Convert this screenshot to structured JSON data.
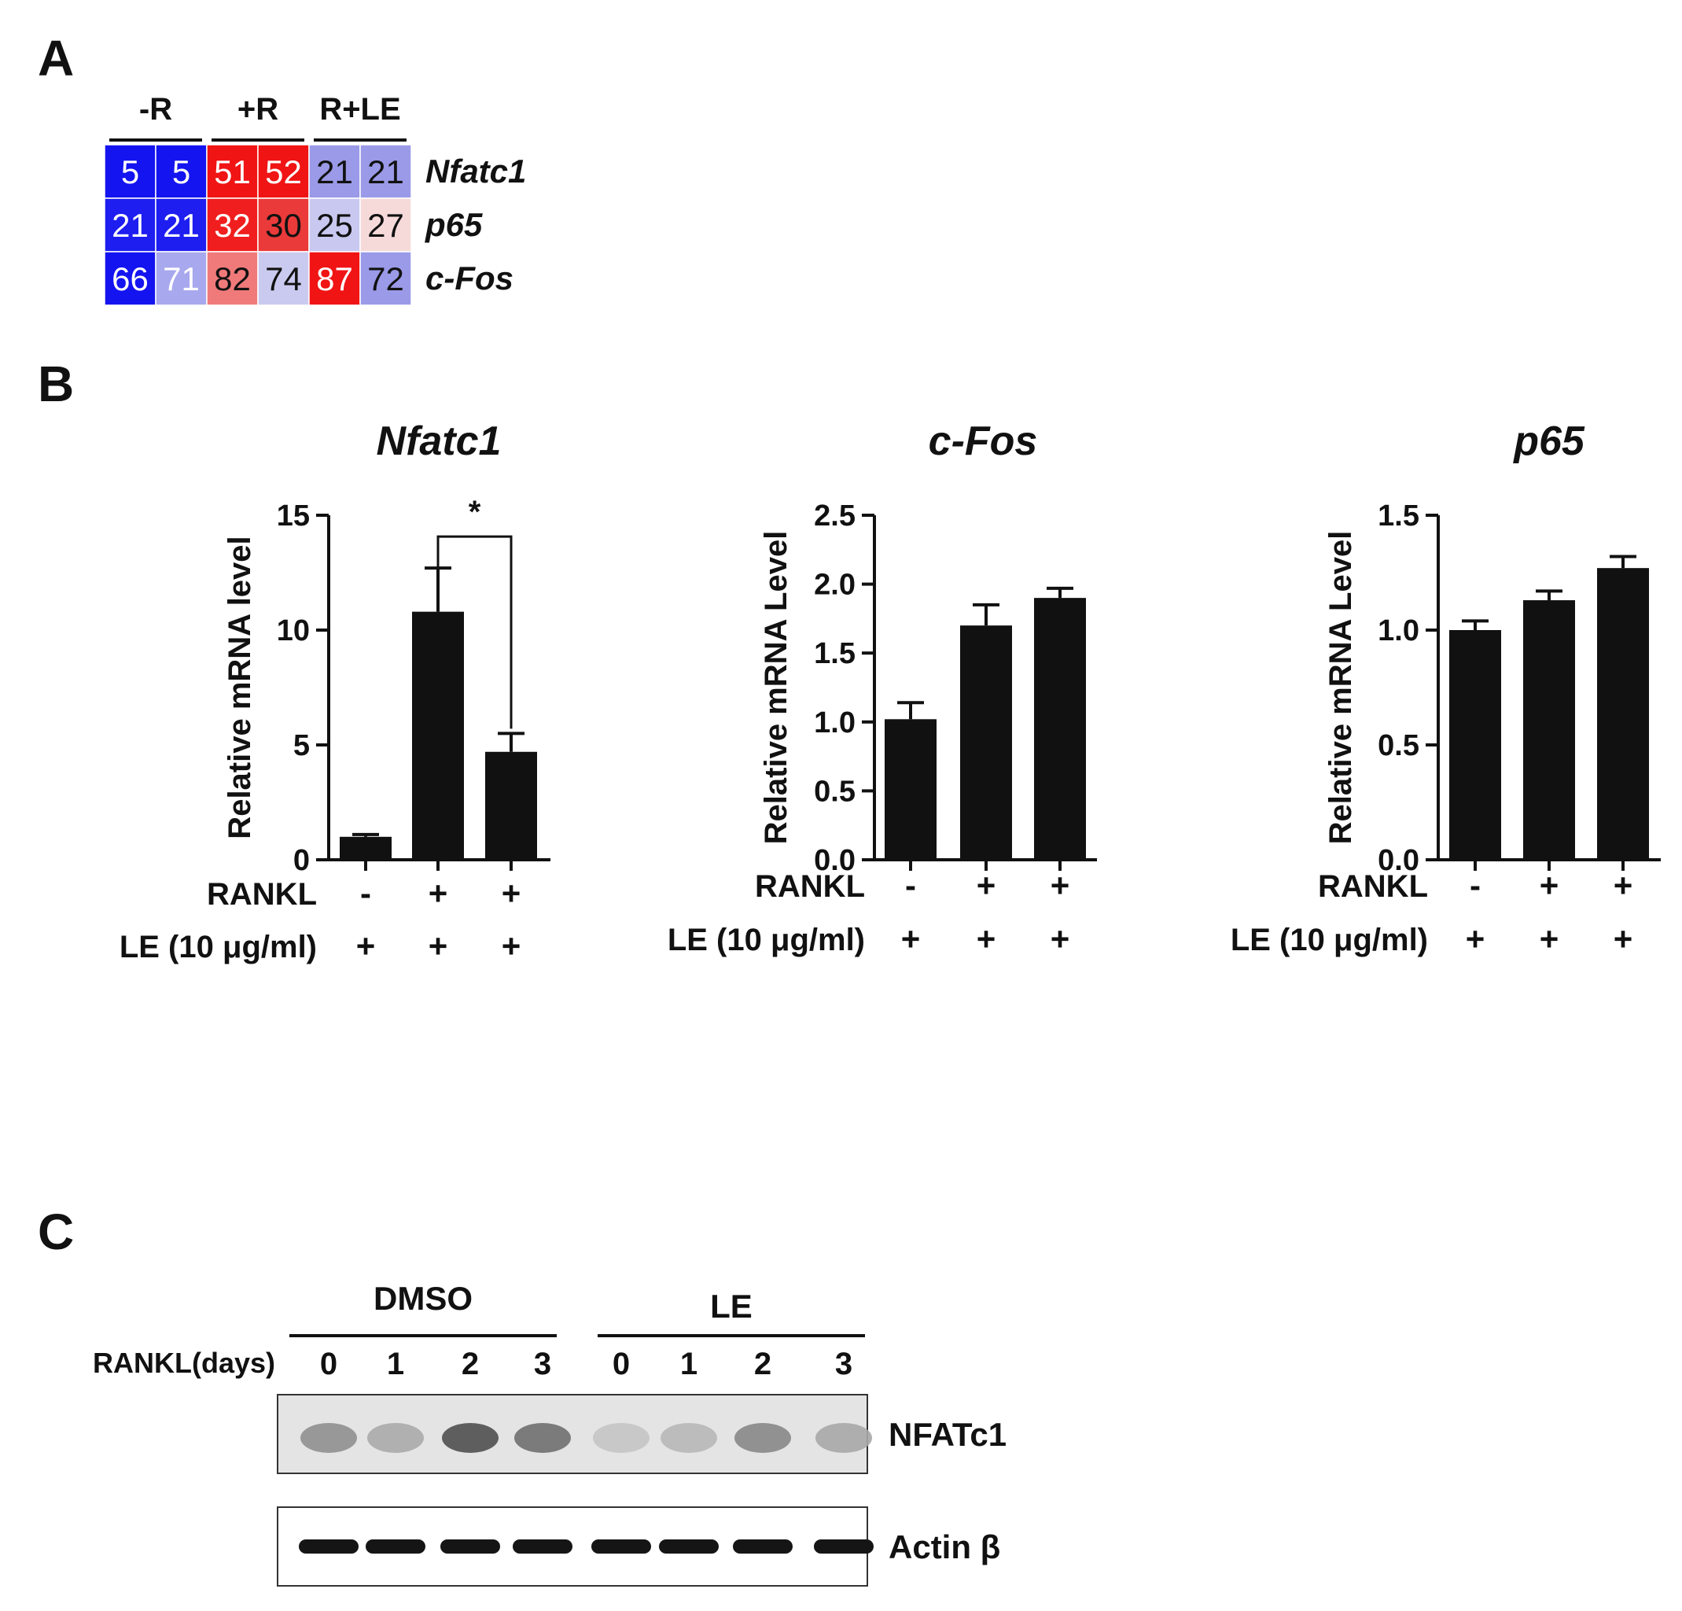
{
  "panel_labels": {
    "a": "A",
    "b": "B",
    "c": "C"
  },
  "heatmap": {
    "groups": [
      "-R",
      "+R",
      "R+LE"
    ],
    "rows": [
      {
        "gene": "Nfatc1",
        "values": [
          5,
          5,
          51,
          52,
          21,
          21
        ],
        "colors": [
          "#1414f0",
          "#1414f0",
          "#f01414",
          "#f01414",
          "#9a9ae8",
          "#9a9ae8"
        ]
      },
      {
        "gene": "p65",
        "values": [
          21,
          21,
          32,
          30,
          25,
          27
        ],
        "colors": [
          "#1e1ef0",
          "#1e1ef0",
          "#f01e1e",
          "#ea3a3a",
          "#c8c8f0",
          "#f6dada"
        ]
      },
      {
        "gene": "c-Fos",
        "values": [
          66,
          71,
          82,
          74,
          87,
          72
        ],
        "colors": [
          "#1414f0",
          "#a8a8ee",
          "#f07a7a",
          "#cacaf0",
          "#f01414",
          "#9a9ae8"
        ]
      }
    ]
  },
  "chart_data": [
    {
      "type": "bar",
      "title": "Nfatc1",
      "ylabel": "Relative mRNA level",
      "categories": [
        "1",
        "2",
        "3"
      ],
      "values": [
        1.0,
        10.8,
        4.7
      ],
      "errors": [
        0.1,
        1.9,
        0.8
      ],
      "ylim": [
        0,
        15
      ],
      "yticks": [
        "0",
        "5",
        "10",
        "15"
      ],
      "significance": {
        "from": 1,
        "to": 2,
        "label": "*"
      },
      "conditions": [
        {
          "label": "RANKL",
          "values": [
            "-",
            "+",
            "+"
          ]
        },
        {
          "label": "LE (10 μg/ml)",
          "values": [
            "+",
            "+",
            "+"
          ]
        }
      ]
    },
    {
      "type": "bar",
      "title": "c-Fos",
      "ylabel": "Relative mRNA Level",
      "categories": [
        "1",
        "2",
        "3"
      ],
      "values": [
        1.02,
        1.7,
        1.9
      ],
      "errors": [
        0.12,
        0.15,
        0.07
      ],
      "ylim": [
        0,
        2.5
      ],
      "yticks": [
        "0.0",
        "0.5",
        "1.0",
        "1.5",
        "2.0",
        "2.5"
      ],
      "conditions": [
        {
          "label": "RANKL",
          "values": [
            "-",
            "+",
            "+"
          ]
        },
        {
          "label": "LE (10 μg/ml)",
          "values": [
            "+",
            "+",
            "+"
          ]
        }
      ]
    },
    {
      "type": "bar",
      "title": "p65",
      "ylabel": "Relative mRNA Level",
      "categories": [
        "1",
        "2",
        "3"
      ],
      "values": [
        1.0,
        1.13,
        1.27
      ],
      "errors": [
        0.04,
        0.04,
        0.05
      ],
      "ylim": [
        0,
        1.5
      ],
      "yticks": [
        "0.0",
        "0.5",
        "1.0",
        "1.5"
      ],
      "conditions": [
        {
          "label": "RANKL",
          "values": [
            "-",
            "+",
            "+"
          ]
        },
        {
          "label": "LE (10 μg/ml)",
          "values": [
            "+",
            "+",
            "+"
          ]
        }
      ]
    }
  ],
  "western_blot": {
    "groups": [
      "DMSO",
      "LE"
    ],
    "row_label": "RANKL(days)",
    "lanes": [
      "0",
      "1",
      "2",
      "3",
      "0",
      "1",
      "2",
      "3"
    ],
    "blots": [
      {
        "name": "NFATc1",
        "intensities": [
          0.45,
          0.28,
          0.85,
          0.65,
          0.12,
          0.2,
          0.5,
          0.3
        ]
      },
      {
        "name": "Actin β",
        "intensities": [
          1,
          1,
          1,
          1,
          1,
          1,
          1,
          1
        ]
      }
    ]
  }
}
